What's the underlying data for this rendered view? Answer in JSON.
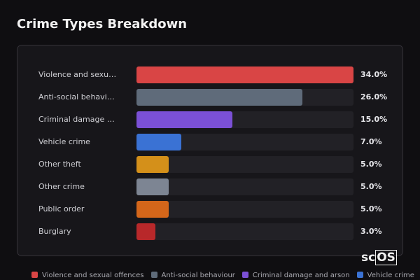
{
  "chart_data": {
    "type": "bar",
    "orientation": "horizontal",
    "title": "Crime Types Breakdown",
    "categories": [
      "Violence and sexual offences",
      "Anti-social behaviour",
      "Criminal damage and arson",
      "Vehicle crime",
      "Other theft",
      "Other crime",
      "Public order",
      "Burglary"
    ],
    "values": [
      34.0,
      26.0,
      15.0,
      7.0,
      5.0,
      5.0,
      5.0,
      3.0
    ],
    "value_labels": [
      "34.0%",
      "26.0%",
      "15.0%",
      "7.0%",
      "5.0%",
      "5.0%",
      "5.0%",
      "3.0%"
    ],
    "colors": [
      "#d94545",
      "#5f6b7a",
      "#7b50d6",
      "#3a72d4",
      "#d4901a",
      "#7d8593",
      "#d4661a",
      "#b8282a"
    ],
    "xlim": [
      0,
      34
    ]
  },
  "watermark": {
    "prefix": "sc",
    "boxed": "OS"
  }
}
